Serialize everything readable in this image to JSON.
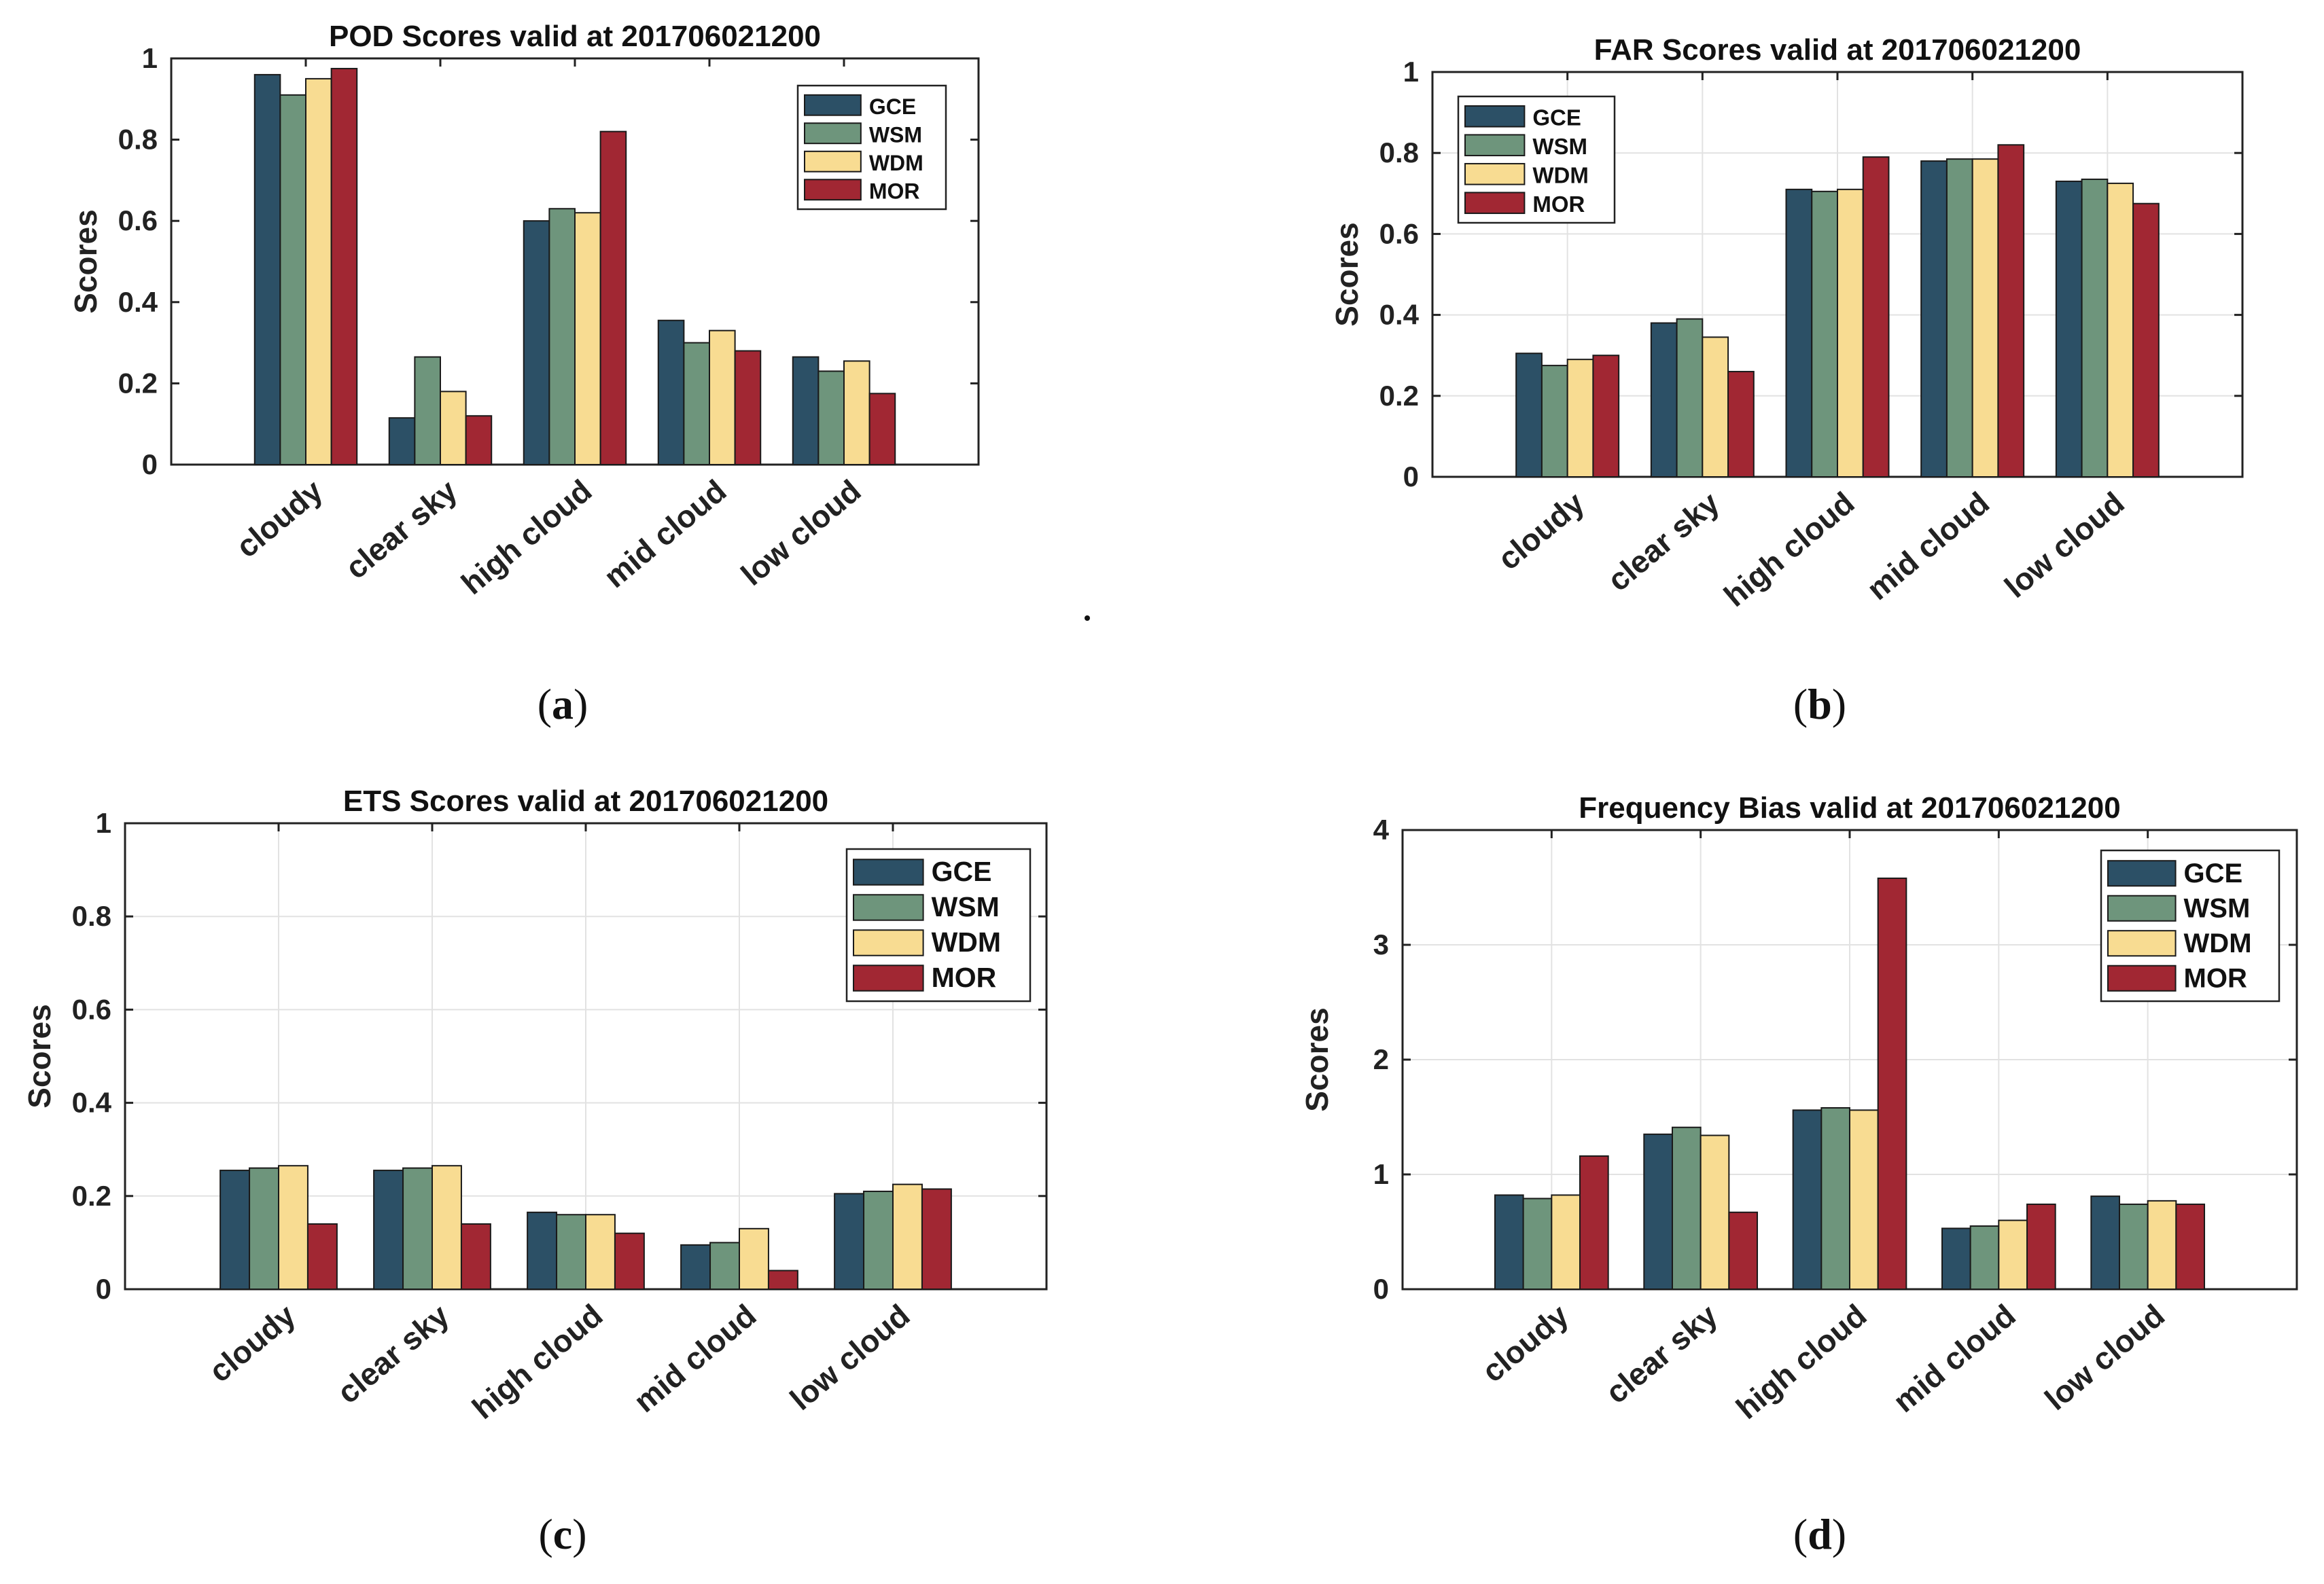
{
  "colors": {
    "GCE": "#2c5066",
    "WSM": "#6e957c",
    "WDM": "#f8dc92",
    "MOR": "#a12733",
    "grid": "#e2e2e2",
    "axis": "#222222"
  },
  "captions": {
    "a": {
      "open": "(",
      "letter": "a",
      "close": ")"
    },
    "b": {
      "open": "(",
      "letter": "b",
      "close": ")"
    },
    "c": {
      "open": "(",
      "letter": "c",
      "close": ")"
    },
    "d": {
      "open": "(",
      "letter": "d",
      "close": ")"
    }
  },
  "chart_data": [
    {
      "id": "a",
      "type": "bar",
      "title": "POD Scores valid at 201706021200",
      "xlabel": "",
      "ylabel": "Scores",
      "ylim": [
        0,
        1
      ],
      "yticks": [
        0,
        0.2,
        0.4,
        0.6,
        0.8,
        1
      ],
      "ytick_labels": [
        "0",
        "0.2",
        "0.4",
        "0.6",
        "0.8",
        "1"
      ],
      "grid": false,
      "legend_position": "top-right",
      "categories": [
        "cloudy",
        "clear sky",
        "high cloud",
        "mid cloud",
        "low cloud"
      ],
      "series": [
        {
          "name": "GCE",
          "values": [
            0.96,
            0.115,
            0.6,
            0.355,
            0.265
          ]
        },
        {
          "name": "WSM",
          "values": [
            0.91,
            0.265,
            0.63,
            0.3,
            0.23
          ]
        },
        {
          "name": "WDM",
          "values": [
            0.95,
            0.18,
            0.62,
            0.33,
            0.255
          ]
        },
        {
          "name": "MOR",
          "values": [
            0.975,
            0.12,
            0.82,
            0.28,
            0.175
          ]
        }
      ]
    },
    {
      "id": "b",
      "type": "bar",
      "title": "FAR Scores valid at 201706021200",
      "xlabel": "",
      "ylabel": "Scores",
      "ylim": [
        0,
        1
      ],
      "yticks": [
        0,
        0.2,
        0.4,
        0.6,
        0.8,
        1
      ],
      "ytick_labels": [
        "0",
        "0.2",
        "0.4",
        "0.6",
        "0.8",
        "1"
      ],
      "grid": true,
      "legend_position": "top-left",
      "categories": [
        "cloudy",
        "clear sky",
        "high cloud",
        "mid cloud",
        "low cloud"
      ],
      "series": [
        {
          "name": "GCE",
          "values": [
            0.305,
            0.38,
            0.71,
            0.78,
            0.73
          ]
        },
        {
          "name": "WSM",
          "values": [
            0.275,
            0.39,
            0.705,
            0.785,
            0.735
          ]
        },
        {
          "name": "WDM",
          "values": [
            0.29,
            0.345,
            0.71,
            0.785,
            0.725
          ]
        },
        {
          "name": "MOR",
          "values": [
            0.3,
            0.26,
            0.79,
            0.82,
            0.675
          ]
        }
      ]
    },
    {
      "id": "c",
      "type": "bar",
      "title": "ETS Scores valid at 201706021200",
      "xlabel": "",
      "ylabel": "Scores",
      "ylim": [
        0,
        1
      ],
      "yticks": [
        0,
        0.2,
        0.4,
        0.6,
        0.8,
        1
      ],
      "ytick_labels": [
        "0",
        "0.2",
        "0.4",
        "0.6",
        "0.8",
        "1"
      ],
      "grid": true,
      "legend_position": "top-right",
      "categories": [
        "cloudy",
        "clear sky",
        "high cloud",
        "mid cloud",
        "low cloud"
      ],
      "series": [
        {
          "name": "GCE",
          "values": [
            0.255,
            0.255,
            0.165,
            0.095,
            0.205
          ]
        },
        {
          "name": "WSM",
          "values": [
            0.26,
            0.26,
            0.16,
            0.1,
            0.21
          ]
        },
        {
          "name": "WDM",
          "values": [
            0.265,
            0.265,
            0.16,
            0.13,
            0.225
          ]
        },
        {
          "name": "MOR",
          "values": [
            0.14,
            0.14,
            0.12,
            0.04,
            0.215
          ]
        }
      ]
    },
    {
      "id": "d",
      "type": "bar",
      "title": "Frequency Bias valid at 201706021200",
      "xlabel": "",
      "ylabel": "Scores",
      "ylim": [
        0,
        4
      ],
      "yticks": [
        0,
        1,
        2,
        3,
        4
      ],
      "ytick_labels": [
        "0",
        "1",
        "2",
        "3",
        "4"
      ],
      "grid": true,
      "legend_position": "top-right",
      "categories": [
        "cloudy",
        "clear sky",
        "high cloud",
        "mid cloud",
        "low cloud"
      ],
      "series": [
        {
          "name": "GCE",
          "values": [
            0.82,
            1.35,
            1.56,
            0.53,
            0.81
          ]
        },
        {
          "name": "WSM",
          "values": [
            0.79,
            1.41,
            1.58,
            0.55,
            0.74
          ]
        },
        {
          "name": "WDM",
          "values": [
            0.82,
            1.34,
            1.56,
            0.6,
            0.77
          ]
        },
        {
          "name": "MOR",
          "values": [
            1.16,
            0.67,
            3.58,
            0.74,
            0.74
          ]
        }
      ]
    }
  ]
}
